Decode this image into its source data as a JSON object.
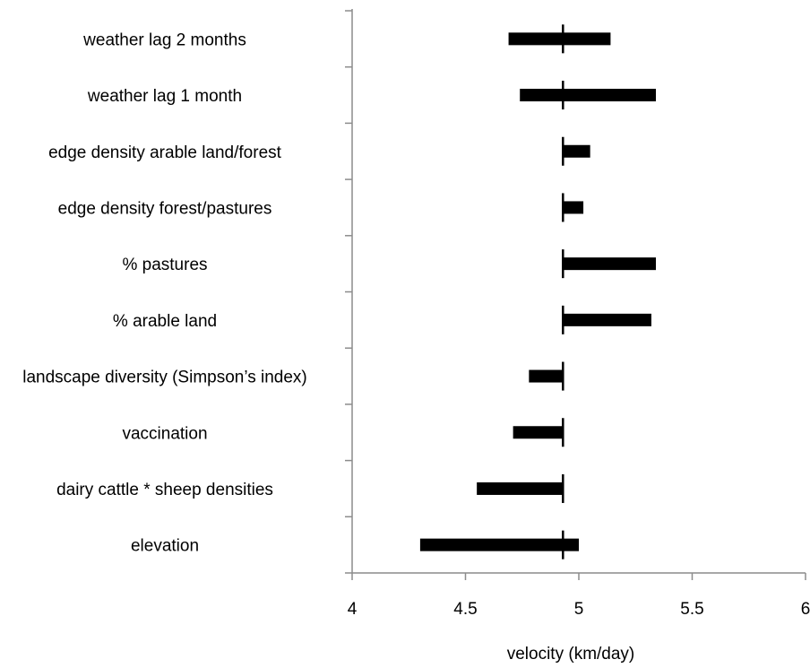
{
  "chart_data": {
    "type": "bar",
    "orientation": "horizontal",
    "baseline": 4.93,
    "categories": [
      "weather lag 2 months",
      "weather lag 1 month",
      "edge density arable land/forest",
      "edge density forest/pastures",
      "% pastures",
      "% arable land",
      "landscape diversity (Simpson’s index)",
      "vaccination",
      "dairy cattle * sheep densities",
      "elevation"
    ],
    "ranges": [
      [
        4.69,
        5.14
      ],
      [
        4.74,
        5.34
      ],
      [
        4.93,
        5.05
      ],
      [
        4.93,
        5.02
      ],
      [
        4.93,
        5.34
      ],
      [
        4.93,
        5.32
      ],
      [
        4.78,
        4.93
      ],
      [
        4.71,
        4.93
      ],
      [
        4.55,
        4.93
      ],
      [
        4.3,
        5.0
      ]
    ],
    "xlim": [
      4,
      6
    ],
    "xticks": [
      "4",
      "4.5",
      "5",
      "5.5",
      "6"
    ],
    "xlabel": "velocity (km/day)",
    "ylabel": "",
    "title": "",
    "grid": false,
    "legend": "none",
    "colors": {
      "bar": "#000000",
      "axis": "#8c8c8c",
      "text": "#000000"
    }
  }
}
